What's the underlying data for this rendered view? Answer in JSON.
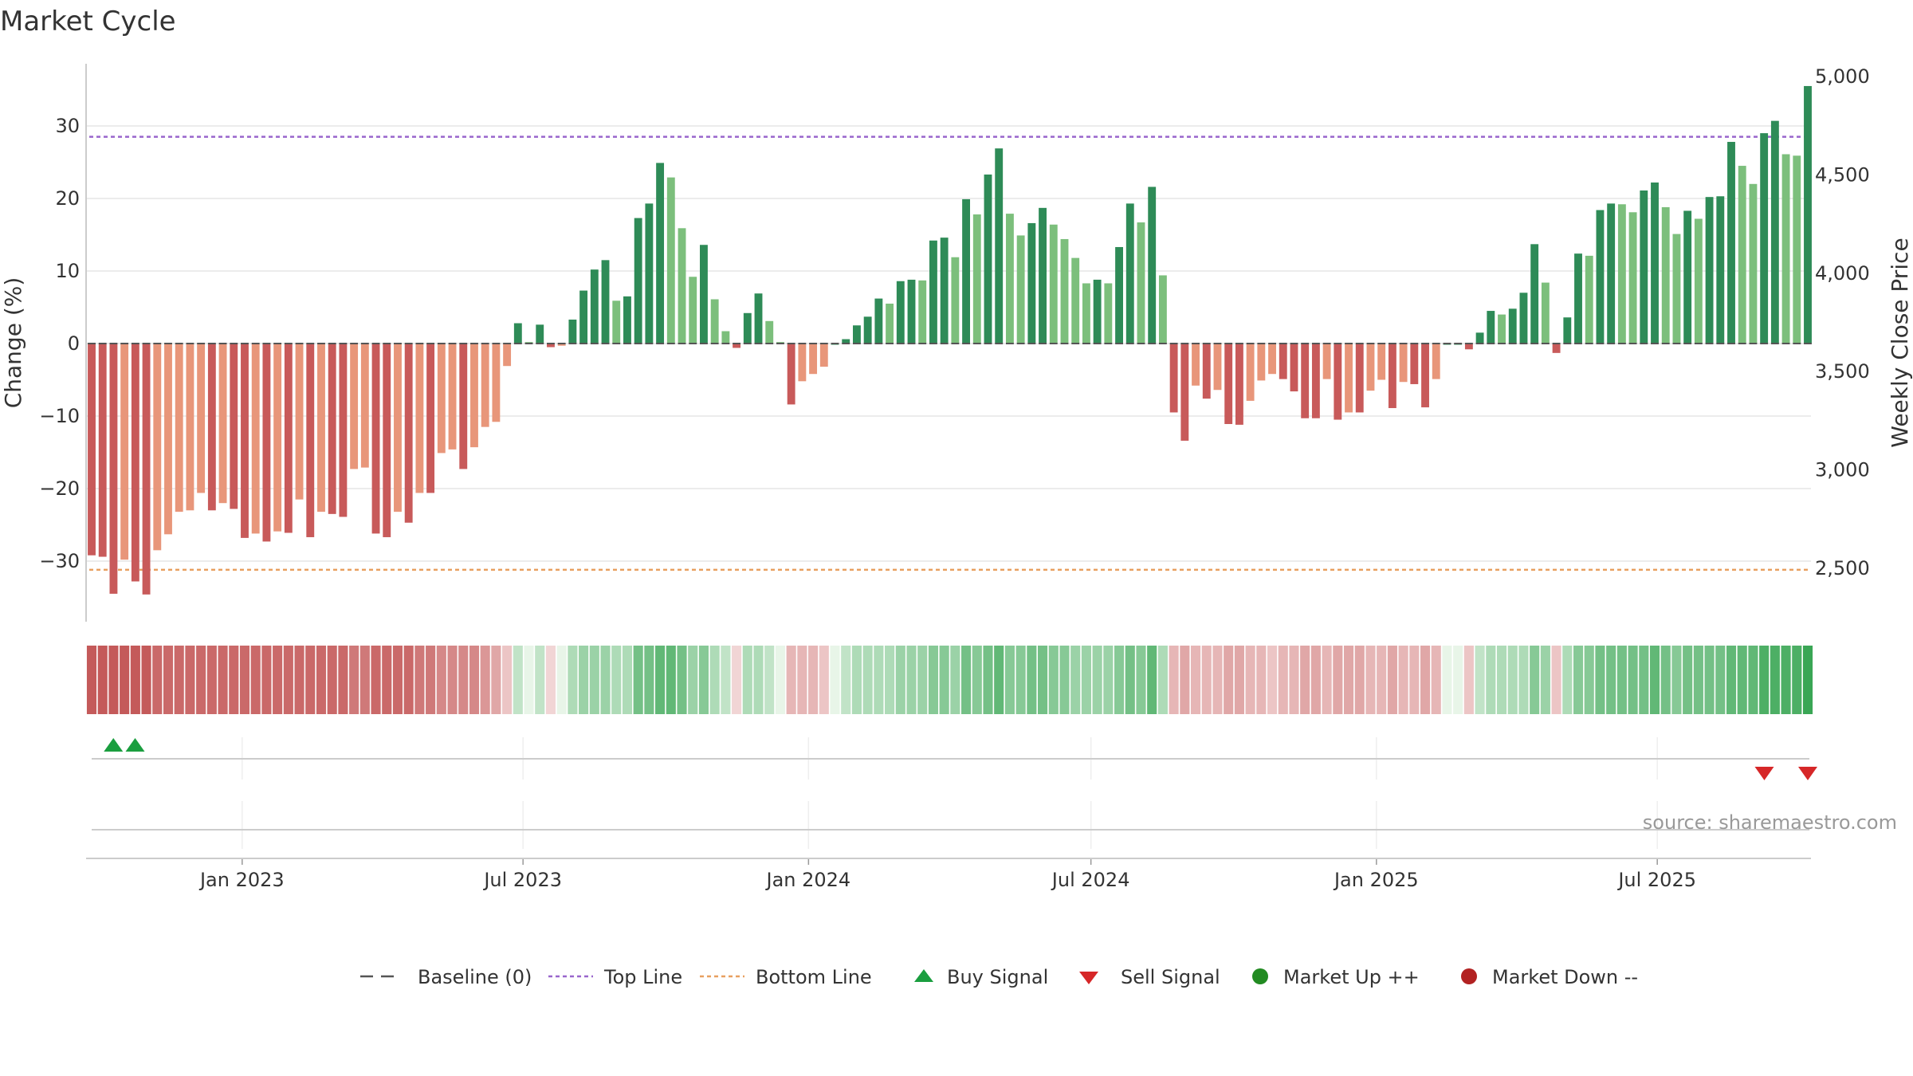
{
  "title": "Market Cycle",
  "source": "source: sharemaestro.com",
  "colors": {
    "strong_up": "#2e8b57",
    "weak_up": "#7cbf7c",
    "strong_down": "#c85a5a",
    "weak_down": "#e8967a",
    "top_line": "#9966cc",
    "bottom_line": "#e8a060",
    "baseline": "#555555",
    "buy": "#1a9e3f",
    "sell": "#d62728",
    "market_up": "#228b22",
    "market_down": "#b22222"
  },
  "legend": [
    {
      "label": "Baseline (0)",
      "icon": "dash-line-icon",
      "color": "#555555"
    },
    {
      "label": "Top Line",
      "icon": "dotted-line-icon",
      "color": "#9966cc"
    },
    {
      "label": "Bottom Line",
      "icon": "dotted-line-icon",
      "color": "#e8a060"
    },
    {
      "label": "Buy Signal",
      "icon": "triangle-up-icon",
      "color": "#1a9e3f"
    },
    {
      "label": "Sell Signal",
      "icon": "triangle-down-icon",
      "color": "#d62728"
    },
    {
      "label": "Market Up ++",
      "icon": "circle-icon",
      "color": "#228b22"
    },
    {
      "label": "Market Down --",
      "icon": "circle-icon",
      "color": "#b22222"
    }
  ],
  "chart_data": {
    "type": "bar",
    "title": "Market Cycle",
    "ylabel": "Change (%)",
    "y2label": "Weekly Close Price",
    "ylim": [
      -38,
      38
    ],
    "y2lim": [
      2200,
      5000
    ],
    "yticks": [
      30,
      20,
      10,
      0,
      -10,
      -20,
      -30
    ],
    "ytick_labels": [
      "30",
      "20",
      "10",
      "0",
      "−10",
      "−20",
      "−30"
    ],
    "y2ticks": [
      5000,
      4500,
      4000,
      3500,
      3000,
      2500
    ],
    "y2tick_labels": [
      "5,000",
      "4,500",
      "4,000",
      "3,500",
      "3,000",
      "2,500"
    ],
    "top_line": 28.5,
    "bottom_line": -31.2,
    "x_start": "2022-09-26",
    "x_end": "2025-10-06",
    "xtick_dates": [
      "2023-01-01",
      "2023-07-01",
      "2024-01-01",
      "2024-07-01",
      "2025-01-01",
      "2025-07-01"
    ],
    "xtick_labels": [
      "Jan 2023",
      "Jul 2023",
      "Jan 2024",
      "Jul 2024",
      "Jan 2025",
      "Jul 2025"
    ],
    "grid": true,
    "legend_position": "bottom-center",
    "series": [
      {
        "values": [
          -29.2,
          -29.4,
          -34.5,
          -29.8,
          -32.8,
          -34.6,
          -28.5,
          -26.3,
          -23.2,
          -23.0,
          -20.6,
          -23.0,
          -22.0,
          -22.8,
          -26.8,
          -26.2,
          -27.3,
          -25.9,
          -26.1,
          -21.5,
          -26.7,
          -23.2,
          -23.5,
          -23.9,
          -17.3,
          -17.1,
          -26.2,
          -26.7,
          -23.2,
          -24.7,
          -20.6,
          -20.6,
          -15.1,
          -14.6,
          -17.3,
          -14.3,
          -11.5,
          -10.8,
          -3.1,
          2.8,
          0.2,
          2.6,
          -0.5,
          -0.3,
          3.3,
          7.3,
          10.2,
          11.5,
          5.9,
          6.5,
          17.3,
          19.3,
          24.9,
          22.9,
          15.9,
          9.2,
          13.6,
          6.1,
          1.7,
          -0.6,
          4.2,
          6.9,
          3.1,
          0.2,
          -8.4,
          -5.2,
          -4.2,
          -3.2,
          0.0,
          0.6,
          2.5,
          3.7,
          6.2,
          5.5,
          8.6,
          8.8,
          8.7,
          14.2,
          14.6,
          11.9,
          19.9,
          17.8,
          23.3,
          26.9,
          17.9,
          14.9,
          16.6,
          18.7,
          16.4,
          14.4,
          11.8,
          8.3,
          8.8,
          8.3,
          13.3,
          19.3,
          16.7,
          21.6,
          9.4,
          -9.5,
          -13.4,
          -5.8,
          -7.6,
          -6.4,
          -11.1,
          -11.2,
          -7.9,
          -5.1,
          -4.2,
          -4.9,
          -6.6,
          -10.3,
          -10.3,
          -4.9,
          -10.5,
          -9.5,
          -9.5,
          -6.5,
          -5.0,
          -8.9,
          -5.3,
          -5.6,
          -8.8,
          -4.9,
          0.0,
          0.0,
          -0.8,
          1.5,
          4.5,
          4.0,
          4.8,
          7.0,
          13.7,
          8.4,
          -1.3,
          3.6,
          12.4,
          12.1,
          18.4,
          19.3,
          19.2,
          18.1,
          21.1,
          22.2,
          18.8,
          15.1,
          18.3,
          17.2,
          20.2,
          20.3,
          27.8,
          24.5,
          22.0,
          29.0,
          30.7,
          26.1,
          25.9,
          35.5
        ]
      }
    ],
    "heat_strip": [
      -9,
      -9,
      -9,
      -9,
      -9,
      -9,
      -8,
      -8,
      -8,
      -8,
      -8,
      -8,
      -8,
      -8,
      -8,
      -8,
      -8,
      -8,
      -8,
      -8,
      -8,
      -8,
      -8,
      -8,
      -7,
      -7,
      -8,
      -8,
      -8,
      -8,
      -7,
      -7,
      -6,
      -6,
      -6,
      -6,
      -5,
      -4,
      -2,
      2,
      0,
      2,
      -1,
      0,
      3,
      4,
      4,
      4,
      3,
      3,
      6,
      6,
      7,
      7,
      6,
      4,
      5,
      3,
      2,
      -1,
      3,
      3,
      2,
      0,
      -3,
      -3,
      -3,
      -2,
      0,
      2,
      3,
      3,
      3,
      3,
      4,
      4,
      4,
      5,
      5,
      4,
      6,
      5,
      6,
      7,
      5,
      5,
      6,
      6,
      5,
      5,
      4,
      4,
      4,
      4,
      5,
      6,
      5,
      7,
      3,
      -3,
      -4,
      -3,
      -3,
      -3,
      -4,
      -4,
      -3,
      -3,
      -2,
      -3,
      -3,
      -4,
      -4,
      -3,
      -4,
      -4,
      -4,
      -3,
      -3,
      -4,
      -3,
      -3,
      -4,
      -3,
      0,
      0,
      -2,
      2,
      3,
      3,
      3,
      3,
      5,
      4,
      -2,
      3,
      5,
      5,
      6,
      6,
      6,
      6,
      6,
      7,
      6,
      5,
      6,
      6,
      6,
      6,
      7,
      7,
      7,
      8,
      8,
      8,
      8,
      9
    ],
    "buy_signals": [
      "2022-10-10",
      "2022-10-24"
    ],
    "sell_signals": [
      "2025-09-08",
      "2025-10-06"
    ],
    "market_up": [],
    "market_down": []
  }
}
